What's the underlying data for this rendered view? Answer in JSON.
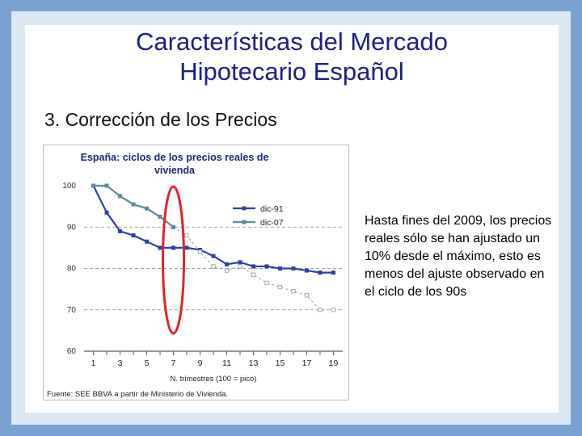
{
  "slide": {
    "title_line1": "Características del Mercado",
    "title_line2": "Hipotecario Español",
    "subtitle": "3. Corrección de los Precios",
    "side_text": "Hasta fines del 2009, los precios reales sólo se han ajustado un 10% desde el máximo, esto es menos del ajuste observado en el ciclo de los 90s"
  },
  "colors": {
    "background": "#7aa1d2",
    "title": "#1b1f84",
    "series1": "#2e3fae",
    "series2": "#5b8aa0",
    "highlight": "#e0242c"
  },
  "chart_data": {
    "type": "line",
    "title_line1": "España: ciclos de los precios reales de",
    "title_line2": "vivienda",
    "xlabel": "N. trimestres (100 = pico)",
    "source": "Fuente: SEE BBVA a partir de Ministerio de Vivienda.",
    "x": [
      1,
      2,
      3,
      4,
      5,
      6,
      7,
      8,
      9,
      10,
      11,
      12,
      13,
      14,
      15,
      16,
      17,
      18,
      19
    ],
    "xticks": [
      "1",
      "3",
      "5",
      "7",
      "9",
      "11",
      "13",
      "15",
      "17",
      "19"
    ],
    "xtick_values": [
      1,
      3,
      5,
      7,
      9,
      11,
      13,
      15,
      17,
      19
    ],
    "yticks": [
      "60",
      "70",
      "80",
      "90",
      "100"
    ],
    "ytick_values": [
      60,
      70,
      80,
      90,
      100
    ],
    "ylim": [
      60,
      100
    ],
    "xlim": [
      0.3,
      19.7
    ],
    "gridlines": [
      70,
      80,
      90
    ],
    "series": [
      {
        "name": "dic-91",
        "values": [
          100,
          93.5,
          89,
          88,
          86.5,
          85,
          85,
          85,
          84.5,
          83,
          81,
          81.5,
          80.5,
          80.5,
          80,
          80,
          79.5,
          79,
          79
        ]
      },
      {
        "name": "dic-07",
        "values": [
          100,
          100,
          97.5,
          95.5,
          94.5,
          92.5,
          90,
          88,
          84,
          80.5,
          79.5,
          80.5,
          78.5,
          76.5,
          75.5,
          74.5,
          73.5,
          70,
          70
        ]
      }
    ],
    "solid_until_index_series2": 6,
    "highlight_x": 7
  }
}
